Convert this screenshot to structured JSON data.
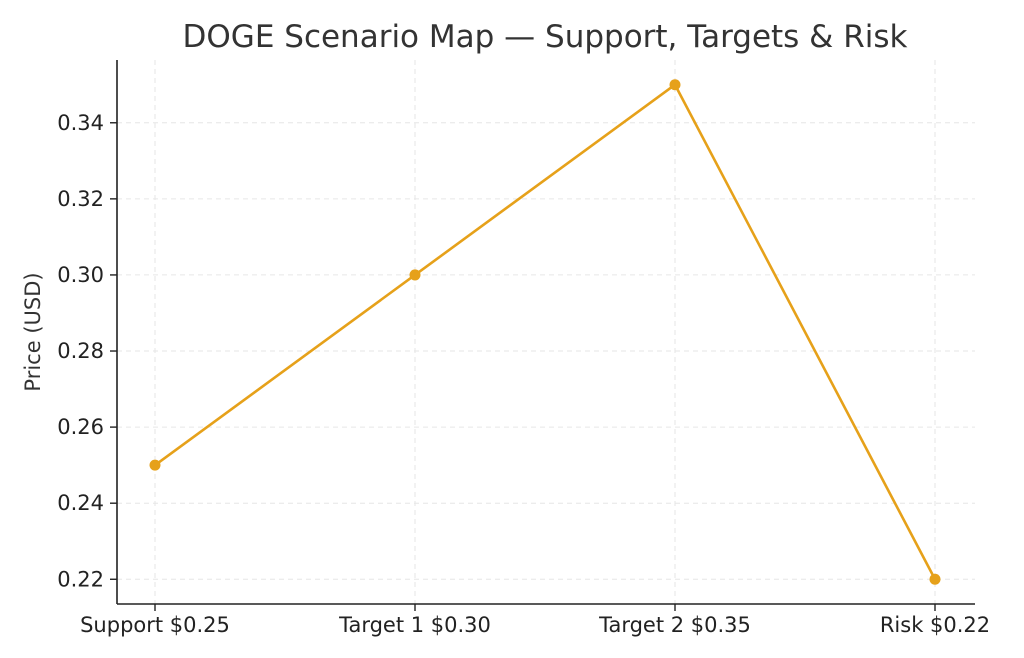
{
  "chart_data": {
    "type": "line",
    "title": "DOGE Scenario Map — Support, Targets & Risk",
    "xlabel": "",
    "ylabel": "Price (USD)",
    "categories": [
      "Support $0.25",
      "Target 1 $0.30",
      "Target 2 $0.35",
      "Risk $0.22"
    ],
    "series": [
      {
        "values": [
          0.25,
          0.3,
          0.35,
          0.22
        ],
        "color": "#E6A11A"
      }
    ],
    "ylim": [
      0.2135,
      0.3565
    ],
    "yticks": [
      0.22,
      0.24,
      0.26,
      0.28,
      0.3,
      0.32,
      0.34
    ],
    "ytick_labels": [
      "0.22",
      "0.24",
      "0.26",
      "0.28",
      "0.30",
      "0.32",
      "0.34"
    ],
    "grid": true,
    "colors": {
      "line": "#E6A11A",
      "grid": "#e6e6e6",
      "axis": "#222222",
      "text": "#333333"
    }
  }
}
